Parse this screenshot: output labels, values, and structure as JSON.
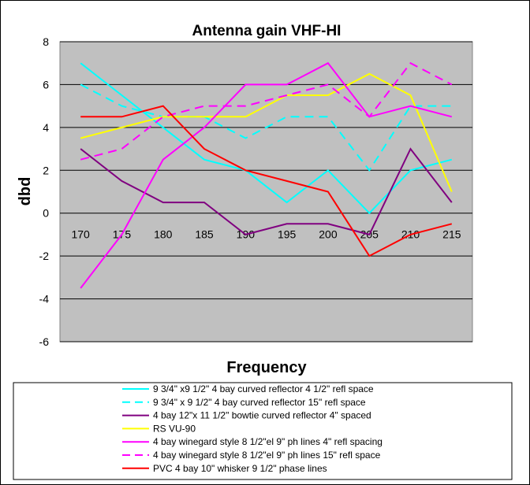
{
  "chart_data": {
    "type": "line",
    "title": "Antenna gain VHF-HI",
    "xlabel": "Frequency",
    "ylabel": "dbd",
    "categories": [
      "170",
      "175",
      "180",
      "185",
      "190",
      "195",
      "200",
      "205",
      "210",
      "215"
    ],
    "ylim": [
      -6,
      8
    ],
    "yticks": [
      8,
      6,
      4,
      2,
      0,
      -2,
      -4,
      -6
    ],
    "grid": true,
    "legend_position": "bottom",
    "series": [
      {
        "name": "9 3/4\" x9 1/2\" 4 bay curved reflector 4 1/2\" refl space",
        "color": "#00FFFF",
        "dash": "solid",
        "values": [
          7,
          5.5,
          4,
          2.5,
          2,
          0.5,
          2,
          0,
          2,
          2.5
        ]
      },
      {
        "name": "9 3/4\" x 9 1/2\" 4 bay curved reflector 15\" refl space",
        "color": "#00FFFF",
        "dash": "dashed",
        "values": [
          6,
          5,
          4.5,
          4.5,
          3.5,
          4.5,
          4.5,
          2,
          5,
          5
        ]
      },
      {
        "name": "4 bay 12\"x 11 1/2\" bowtie curved reflector 4\" spaced",
        "color": "#800080",
        "dash": "solid",
        "values": [
          3,
          1.5,
          0.5,
          0.5,
          -1,
          -0.5,
          -0.5,
          -1,
          3,
          0.5
        ]
      },
      {
        "name": "RS VU-90",
        "color": "#FFFF00",
        "dash": "solid",
        "values": [
          3.5,
          4,
          4.5,
          4.5,
          4.5,
          5.5,
          5.5,
          6.5,
          5.5,
          1
        ]
      },
      {
        "name": "4 bay winegard style 8 1/2\"el 9\" ph lines 4\" refl spacing",
        "color": "#FF00FF",
        "dash": "solid",
        "values": [
          -3.5,
          -1,
          2.5,
          4,
          6,
          6,
          7,
          4.5,
          5,
          4.5
        ]
      },
      {
        "name": "4 bay winegard style 8 1/2\"el 9\" ph lines 15\" refl space",
        "color": "#FF00FF",
        "dash": "dashed",
        "values": [
          2.5,
          3,
          4.5,
          5,
          5,
          5.5,
          6,
          4.5,
          7,
          6
        ]
      },
      {
        "name": "PVC  4 bay 10\" whisker 9 1/2\" phase lines",
        "color": "#FF0000",
        "dash": "solid",
        "values": [
          4.5,
          4.5,
          5,
          3,
          2,
          1.5,
          1,
          -2,
          -1,
          -0.5
        ]
      }
    ]
  }
}
